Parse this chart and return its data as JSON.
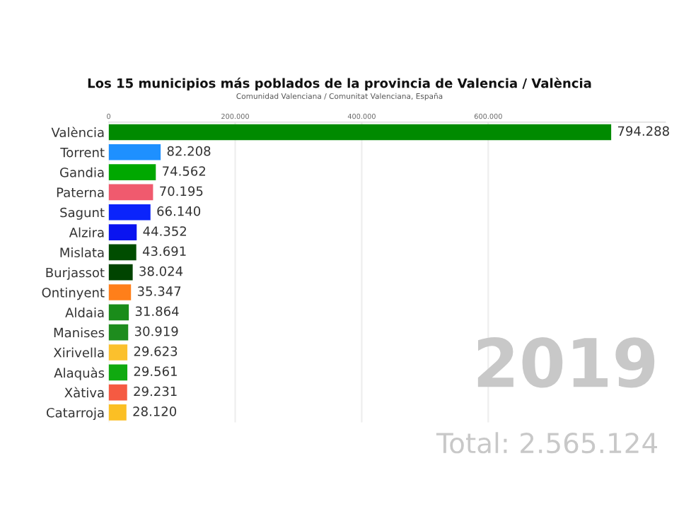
{
  "chart_data": {
    "type": "bar",
    "orientation": "horizontal",
    "title": "Los 15 municipios más poblados de la provincia de Valencia / València",
    "subtitle": "Comunidad Valenciana / Comunitat Valenciana, España",
    "categories": [
      "València",
      "Torrent",
      "Gandia",
      "Paterna",
      "Sagunt",
      "Alzira",
      "Mislata",
      "Burjassot",
      "Ontinyent",
      "Aldaia",
      "Manises",
      "Xirivella",
      "Alaquàs",
      "Xàtiva",
      "Catarroja"
    ],
    "values": [
      794288,
      82208,
      74562,
      70195,
      66140,
      44352,
      43691,
      38024,
      35347,
      31864,
      30919,
      29623,
      29561,
      29231,
      28120
    ],
    "value_labels": [
      "794.288",
      "82.208",
      "74.562",
      "70.195",
      "66.140",
      "44.352",
      "43.691",
      "38.024",
      "35.347",
      "31.864",
      "30.919",
      "29.623",
      "29.561",
      "29.231",
      "28.120"
    ],
    "colors": [
      "#008a00",
      "#1e90ff",
      "#00a800",
      "#f05a6e",
      "#0b24fb",
      "#0a14f0",
      "#004d00",
      "#004400",
      "#ff7f1a",
      "#1a8c1a",
      "#1e8c1e",
      "#fbc02d",
      "#10aa10",
      "#f55a42",
      "#fbbf24"
    ],
    "xlim": [
      0,
      880000
    ],
    "xticks": [
      0,
      {
        "value": 200000,
        "label": "200.000"
      },
      {
        "value": 400000,
        "label": "400.000"
      },
      {
        "value": 600000,
        "label": "600.000"
      }
    ],
    "grid": "x",
    "annotations": [
      "2019",
      "Total: 2.565.124"
    ]
  }
}
